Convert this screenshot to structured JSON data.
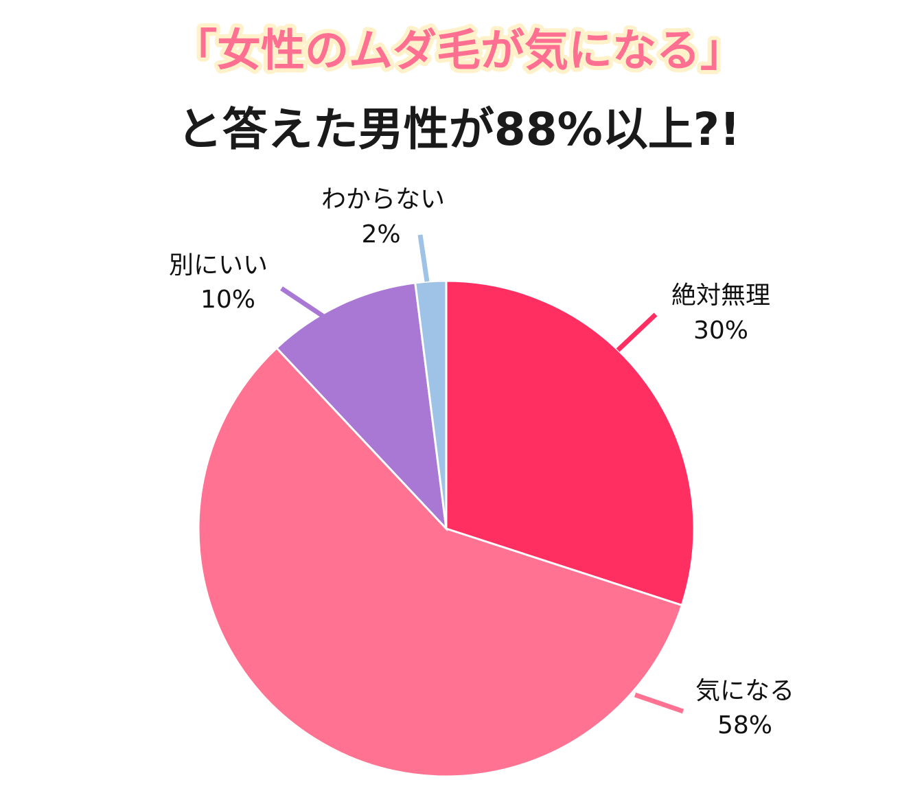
{
  "chart_data": {
    "type": "pie",
    "title": "「女性のムダ毛が気になる」",
    "subtitle": "と答えた男性が88%以上?!",
    "categories": [
      "絶対無理",
      "気になる",
      "別にいい",
      "わからない"
    ],
    "values": [
      30,
      58,
      10,
      2
    ],
    "value_labels": [
      "30%",
      "58%",
      "10%",
      "2%"
    ],
    "colors": [
      "#ff2f62",
      "#ff7292",
      "#a978d4",
      "#9fc3e6"
    ]
  }
}
